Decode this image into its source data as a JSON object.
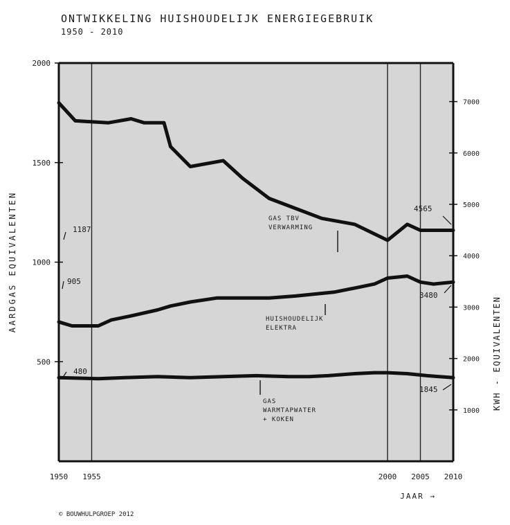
{
  "chart_data": {
    "type": "line",
    "title_line1": "ONTWIKKELING HUISHOUDELIJK ENERGIEGEBRUIK",
    "title_line2": "1950 - 2010",
    "xlabel": "JAAR →",
    "ylabel_left": "AARDGAS EQUIVALENTEN",
    "ylabel_right": "KWH - EQUIVALENTEN",
    "credit": "© BOUWHULPGROEP 2012",
    "xlim": [
      1950,
      2010
    ],
    "ylim": [
      0,
      2000
    ],
    "ylim_right": [
      0,
      7750
    ],
    "x_ticks": [
      "1950",
      "1955",
      "2000",
      "2005",
      "2010"
    ],
    "y_ticks_left": [
      "500",
      "1000",
      "1500",
      "2000"
    ],
    "y_ticks_right": [
      "1000",
      "2000",
      "3000",
      "4000",
      "5000",
      "6000",
      "7000"
    ],
    "grid_x": true,
    "background_color": "#d6d6d6",
    "line_color": "#111111",
    "series": [
      {
        "label_lines": [
          "GAS TBV",
          "VERWARMING"
        ],
        "x": [
          1950,
          1952.5,
          1957.5,
          1961,
          1963,
          1966,
          1967,
          1970,
          1975,
          1978,
          1982,
          1990,
          1995,
          2000,
          2003,
          2005,
          2007,
          2010
        ],
        "y": [
          1800,
          1710,
          1700,
          1720,
          1700,
          1700,
          1580,
          1480,
          1510,
          1420,
          1320,
          1220,
          1190,
          1110,
          1190,
          1160,
          1160,
          1160
        ],
        "start_label": "1187",
        "end_label": "4565"
      },
      {
        "label_lines": [
          "HUISHOUDELIJK",
          "ELEKTRA"
        ],
        "x": [
          1950,
          1952,
          1956,
          1958,
          1961,
          1965,
          1967,
          1970,
          1974,
          1978,
          1982,
          1986,
          1989,
          1992,
          1995,
          1998,
          2000,
          2003,
          2005,
          2007,
          2010
        ],
        "y": [
          700,
          680,
          680,
          710,
          730,
          760,
          780,
          800,
          820,
          820,
          820,
          830,
          840,
          850,
          870,
          890,
          920,
          930,
          900,
          890,
          900
        ],
        "start_label": "905",
        "end_label": "3480"
      },
      {
        "label_lines": [
          "GAS",
          "WARMTAPWATER",
          "+ KOKEN"
        ],
        "x": [
          1950,
          1956,
          1960,
          1965,
          1970,
          1975,
          1980,
          1985,
          1988,
          1991,
          1995,
          1998,
          2000,
          2003,
          2006,
          2010
        ],
        "y": [
          420,
          415,
          420,
          425,
          420,
          425,
          430,
          425,
          425,
          430,
          440,
          445,
          445,
          440,
          430,
          420
        ],
        "start_label": "480",
        "end_label": "1845"
      }
    ]
  }
}
